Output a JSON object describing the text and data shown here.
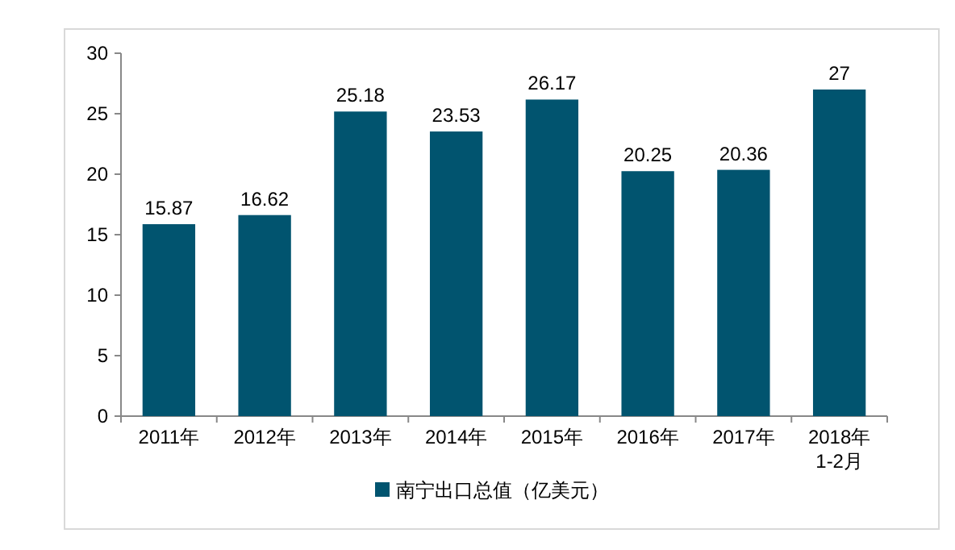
{
  "chart_data": {
    "type": "bar",
    "categories": [
      "2011年",
      "2012年",
      "2013年",
      "2014年",
      "2015年",
      "2016年",
      "2017年",
      "2018年\n1-2月"
    ],
    "series": [
      {
        "name": "南宁出口总值（亿美元）",
        "color": "#01546f",
        "values": [
          15.87,
          16.62,
          25.18,
          23.53,
          26.17,
          20.25,
          20.36,
          27
        ]
      }
    ],
    "ylim": [
      0,
      30
    ],
    "yticks": [
      0,
      5,
      10,
      15,
      20,
      25,
      30
    ],
    "grid": false,
    "data_labels": true,
    "legend": "bottom"
  }
}
